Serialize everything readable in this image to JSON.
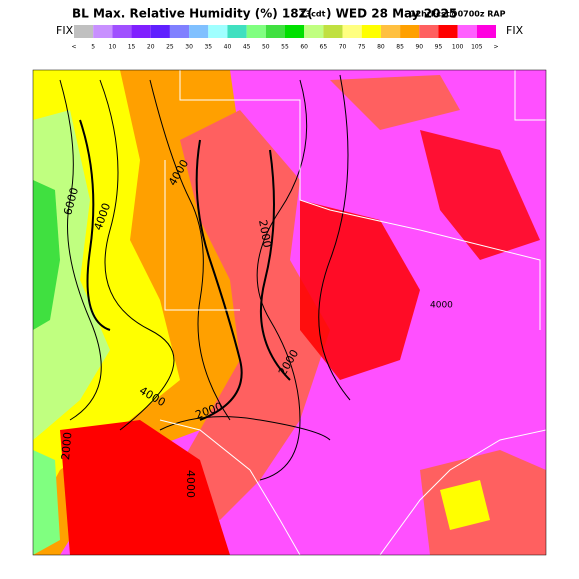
{
  "header": {
    "title_main": "BL Max. Relative Humidity (%) 18Z(",
    "title_small1": "13cdt",
    "title_mid": ") WED 28 May 2025",
    "title_small2": "12hrFcst@0700z RAP"
  },
  "colorbar": {
    "left_label": "FIX",
    "right_label": "FIX",
    "colors": [
      "#c0c0c0",
      "#c890ff",
      "#a050ff",
      "#8020ff",
      "#6020ff",
      "#8080ff",
      "#80c0ff",
      "#a0ffff",
      "#40e0c0",
      "#80ff80",
      "#40e040",
      "#00e000",
      "#c0ff80",
      "#c0e040",
      "#ffff80",
      "#ffff00",
      "#ffc040",
      "#ffa000",
      "#ff6060",
      "#ff0000",
      "#ff60ff",
      "#ff00e0"
    ],
    "labels": [
      "<",
      "5",
      "10",
      "15",
      "20",
      "25",
      "30",
      "35",
      "40",
      "45",
      "50",
      "55",
      "60",
      "65",
      "70",
      "75",
      "80",
      "85",
      "90",
      "95",
      "100",
      "105",
      ">"
    ]
  },
  "map": {
    "contour_labels": [
      "4000",
      "4000",
      "6000",
      "2000",
      "2000",
      "4000",
      "2000",
      "2000",
      "4000",
      "4000"
    ]
  }
}
